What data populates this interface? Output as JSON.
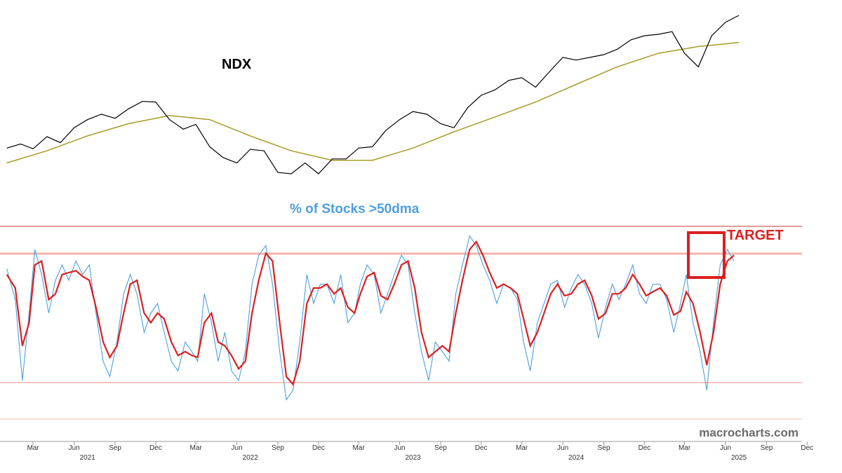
{
  "chart_data": [
    {
      "type": "line",
      "title": "NDX",
      "series": [
        {
          "name": "",
          "color": "#000000",
          "x": [
            "2021-01-01",
            "2021-02-01",
            "2021-03-01",
            "2021-04-01",
            "2021-05-01",
            "2021-06-01",
            "2021-07-01",
            "2021-08-01",
            "2021-09-01",
            "2021-10-01",
            "2021-11-01",
            "2021-12-01",
            "2022-01-01",
            "2022-02-01",
            "2022-03-01",
            "2022-04-01",
            "2022-05-01",
            "2022-06-01",
            "2022-07-01",
            "2022-08-01",
            "2022-09-01",
            "2022-10-01",
            "2022-11-01",
            "2022-12-01",
            "2023-01-01",
            "2023-02-01",
            "2023-03-01",
            "2023-04-01",
            "2023-05-01",
            "2023-06-01",
            "2023-07-01",
            "2023-08-01",
            "2023-09-01",
            "2023-10-01",
            "2023-11-01",
            "2023-12-01",
            "2024-01-01",
            "2024-02-01",
            "2024-03-01",
            "2024-04-01",
            "2024-05-01",
            "2024-06-01",
            "2024-07-01",
            "2024-08-01",
            "2024-09-01",
            "2024-10-01",
            "2024-11-01",
            "2024-12-01",
            "2025-01-01",
            "2025-02-01",
            "2025-03-01",
            "2025-04-01",
            "2025-05-01",
            "2025-06-01",
            "2025-07-01"
          ],
          "values": [
            12900,
            13200,
            12850,
            13750,
            13300,
            14400,
            15000,
            15400,
            15100,
            15800,
            16350,
            16300,
            15000,
            14300,
            14650,
            13000,
            12200,
            11800,
            12800,
            12700,
            11100,
            11000,
            11800,
            11000,
            12100,
            12100,
            12900,
            13000,
            14200,
            15000,
            15600,
            15400,
            14700,
            14400,
            15900,
            16800,
            17200,
            17900,
            18100,
            17400,
            18500,
            19600,
            19400,
            19600,
            19800,
            20200,
            20900,
            21200,
            21300,
            21500,
            19900,
            18900,
            21200,
            22200,
            22700
          ]
        },
        {
          "name": "",
          "color": "#a89a2a",
          "x": [
            "2021-01-01",
            "2021-04-01",
            "2021-07-01",
            "2021-10-01",
            "2022-01-01",
            "2022-04-01",
            "2022-07-01",
            "2022-10-01",
            "2023-01-01",
            "2023-04-01",
            "2023-07-01",
            "2023-10-01",
            "2024-01-01",
            "2024-04-01",
            "2024-07-01",
            "2024-10-01",
            "2025-01-01",
            "2025-04-01",
            "2025-07-01"
          ],
          "values": [
            11800,
            12700,
            13800,
            14700,
            15300,
            15000,
            13800,
            12700,
            12000,
            12000,
            12900,
            14100,
            15200,
            16300,
            17600,
            18900,
            19900,
            20400,
            20700
          ]
        }
      ],
      "xlabel": "",
      "ylabel": ""
    },
    {
      "type": "line",
      "title": "% of Stocks >50dma",
      "series": [
        {
          "name": "",
          "color": "#4d9fe0",
          "x": [
            "2021-01-01",
            "2021-01-20",
            "2021-02-05",
            "2021-02-20",
            "2021-03-05",
            "2021-03-20",
            "2021-04-05",
            "2021-04-20",
            "2021-05-05",
            "2021-05-20",
            "2021-06-05",
            "2021-06-20",
            "2021-07-05",
            "2021-07-20",
            "2021-08-05",
            "2021-08-20",
            "2021-09-05",
            "2021-09-20",
            "2021-10-05",
            "2021-10-20",
            "2021-11-05",
            "2021-11-20",
            "2021-12-05",
            "2021-12-20",
            "2022-01-05",
            "2022-01-20",
            "2022-02-05",
            "2022-02-20",
            "2022-03-05",
            "2022-03-20",
            "2022-04-05",
            "2022-04-20",
            "2022-05-05",
            "2022-05-20",
            "2022-06-05",
            "2022-06-20",
            "2022-07-05",
            "2022-07-20",
            "2022-08-05",
            "2022-08-20",
            "2022-09-05",
            "2022-09-20",
            "2022-10-05",
            "2022-10-20",
            "2022-11-05",
            "2022-11-20",
            "2022-12-05",
            "2022-12-20",
            "2023-01-05",
            "2023-01-20",
            "2023-02-05",
            "2023-02-20",
            "2023-03-05",
            "2023-03-20",
            "2023-04-05",
            "2023-04-20",
            "2023-05-05",
            "2023-05-20",
            "2023-06-05",
            "2023-06-20",
            "2023-07-05",
            "2023-07-20",
            "2023-08-05",
            "2023-08-20",
            "2023-09-05",
            "2023-09-20",
            "2023-10-05",
            "2023-10-20",
            "2023-11-05",
            "2023-11-20",
            "2023-12-05",
            "2023-12-20",
            "2024-01-05",
            "2024-01-20",
            "2024-02-05",
            "2024-02-20",
            "2024-03-05",
            "2024-03-20",
            "2024-04-05",
            "2024-04-20",
            "2024-05-05",
            "2024-05-20",
            "2024-06-05",
            "2024-06-20",
            "2024-07-05",
            "2024-07-20",
            "2024-08-05",
            "2024-08-20",
            "2024-09-05",
            "2024-09-20",
            "2024-10-05",
            "2024-10-20",
            "2024-11-05",
            "2024-11-20",
            "2024-12-05",
            "2024-12-20",
            "2025-01-05",
            "2025-01-20",
            "2025-02-05",
            "2025-02-20",
            "2025-03-05",
            "2025-03-20",
            "2025-04-05",
            "2025-04-20",
            "2025-05-05",
            "2025-05-20",
            "2025-06-05",
            "2025-06-20"
          ],
          "values": [
            78,
            62,
            20,
            55,
            88,
            75,
            55,
            72,
            80,
            72,
            82,
            75,
            80,
            55,
            30,
            22,
            40,
            65,
            75,
            65,
            45,
            55,
            60,
            45,
            30,
            25,
            40,
            35,
            30,
            65,
            50,
            30,
            45,
            25,
            20,
            35,
            70,
            85,
            90,
            70,
            35,
            10,
            15,
            40,
            75,
            60,
            70,
            70,
            60,
            75,
            50,
            55,
            70,
            80,
            75,
            55,
            65,
            75,
            85,
            80,
            55,
            35,
            20,
            40,
            35,
            30,
            65,
            80,
            95,
            90,
            80,
            72,
            60,
            70,
            68,
            62,
            40,
            25,
            50,
            60,
            70,
            72,
            58,
            68,
            75,
            70,
            60,
            42,
            58,
            70,
            62,
            70,
            80,
            65,
            60,
            70,
            70,
            62,
            45,
            60,
            75,
            50,
            35,
            15,
            50,
            80,
            88,
            82
          ]
        },
        {
          "name": "",
          "color": "#dd1f1f",
          "x": [
            "2021-01-01",
            "2021-01-20",
            "2021-02-05",
            "2021-02-20",
            "2021-03-05",
            "2021-03-20",
            "2021-04-05",
            "2021-04-20",
            "2021-05-05",
            "2021-05-20",
            "2021-06-05",
            "2021-06-20",
            "2021-07-05",
            "2021-07-20",
            "2021-08-05",
            "2021-08-20",
            "2021-09-05",
            "2021-09-20",
            "2021-10-05",
            "2021-10-20",
            "2021-11-05",
            "2021-11-20",
            "2021-12-05",
            "2021-12-20",
            "2022-01-05",
            "2022-01-20",
            "2022-02-05",
            "2022-02-20",
            "2022-03-05",
            "2022-03-20",
            "2022-04-05",
            "2022-04-20",
            "2022-05-05",
            "2022-05-20",
            "2022-06-05",
            "2022-06-20",
            "2022-07-05",
            "2022-07-20",
            "2022-08-05",
            "2022-08-20",
            "2022-09-05",
            "2022-09-20",
            "2022-10-05",
            "2022-10-20",
            "2022-11-05",
            "2022-11-20",
            "2022-12-05",
            "2022-12-20",
            "2023-01-05",
            "2023-01-20",
            "2023-02-05",
            "2023-02-20",
            "2023-03-05",
            "2023-03-20",
            "2023-04-05",
            "2023-04-20",
            "2023-05-05",
            "2023-05-20",
            "2023-06-05",
            "2023-06-20",
            "2023-07-05",
            "2023-07-20",
            "2023-08-05",
            "2023-08-20",
            "2023-09-05",
            "2023-09-20",
            "2023-10-05",
            "2023-10-20",
            "2023-11-05",
            "2023-11-20",
            "2023-12-05",
            "2023-12-20",
            "2024-01-05",
            "2024-01-20",
            "2024-02-05",
            "2024-02-20",
            "2024-03-05",
            "2024-03-20",
            "2024-04-05",
            "2024-04-20",
            "2024-05-05",
            "2024-05-20",
            "2024-06-05",
            "2024-06-20",
            "2024-07-05",
            "2024-07-20",
            "2024-08-05",
            "2024-08-20",
            "2024-09-05",
            "2024-09-20",
            "2024-10-05",
            "2024-10-20",
            "2024-11-05",
            "2024-11-20",
            "2024-12-05",
            "2024-12-20",
            "2025-01-05",
            "2025-01-20",
            "2025-02-05",
            "2025-02-20",
            "2025-03-05",
            "2025-03-20",
            "2025-04-05",
            "2025-04-20",
            "2025-05-05",
            "2025-05-20",
            "2025-06-05",
            "2025-06-20"
          ],
          "values": [
            75,
            68,
            38,
            50,
            80,
            82,
            62,
            65,
            75,
            76,
            77,
            74,
            72,
            58,
            40,
            32,
            38,
            55,
            70,
            72,
            55,
            50,
            55,
            52,
            40,
            33,
            35,
            33,
            32,
            50,
            55,
            40,
            38,
            33,
            26,
            30,
            55,
            72,
            86,
            82,
            50,
            22,
            18,
            30,
            60,
            68,
            68,
            70,
            65,
            68,
            58,
            55,
            65,
            74,
            76,
            64,
            62,
            70,
            80,
            82,
            68,
            45,
            32,
            35,
            38,
            35,
            55,
            72,
            88,
            92,
            85,
            76,
            68,
            70,
            68,
            65,
            52,
            38,
            45,
            55,
            65,
            70,
            64,
            65,
            70,
            72,
            64,
            52,
            55,
            65,
            65,
            68,
            75,
            70,
            64,
            66,
            68,
            64,
            54,
            56,
            66,
            60,
            45,
            28,
            45,
            70,
            82,
            85
          ]
        }
      ],
      "hlines": [
        100,
        80,
        20,
        0
      ],
      "ylim": [
        0,
        100
      ],
      "annotation": "TARGET",
      "xlabel": "",
      "ylabel": ""
    }
  ],
  "x_axis": {
    "month_ticks": [
      {
        "label": "Mar",
        "date": "2021-03-01"
      },
      {
        "label": "Jun",
        "date": "2021-06-01"
      },
      {
        "label": "Sep",
        "date": "2021-09-01"
      },
      {
        "label": "Dec",
        "date": "2021-12-01"
      },
      {
        "label": "Mar",
        "date": "2022-03-01"
      },
      {
        "label": "Jun",
        "date": "2022-06-01"
      },
      {
        "label": "Sep",
        "date": "2022-09-01"
      },
      {
        "label": "Dec",
        "date": "2022-12-01"
      },
      {
        "label": "Mar",
        "date": "2023-03-01"
      },
      {
        "label": "Jun",
        "date": "2023-06-01"
      },
      {
        "label": "Sep",
        "date": "2023-09-01"
      },
      {
        "label": "Dec",
        "date": "2023-12-01"
      },
      {
        "label": "Mar",
        "date": "2024-03-01"
      },
      {
        "label": "Jun",
        "date": "2024-06-01"
      },
      {
        "label": "Sep",
        "date": "2024-09-01"
      },
      {
        "label": "Dec",
        "date": "2024-12-01"
      },
      {
        "label": "Mar",
        "date": "2025-03-01"
      },
      {
        "label": "Jun",
        "date": "2025-06-01"
      },
      {
        "label": "Sep",
        "date": "2025-09-01"
      },
      {
        "label": "Dec",
        "date": "2025-12-01"
      }
    ],
    "year_ticks": [
      {
        "label": "2021",
        "date": "2021-07-01"
      },
      {
        "label": "2022",
        "date": "2022-07-01"
      },
      {
        "label": "2023",
        "date": "2023-07-01"
      },
      {
        "label": "2024",
        "date": "2024-07-01"
      },
      {
        "label": "2025",
        "date": "2025-07-01"
      }
    ]
  },
  "watermark": "macrocharts.com",
  "colors": {
    "ndx": "#000000",
    "ndx_ma": "#a89a2a",
    "breadth": "#4d9fe0",
    "breadth_ma": "#dd1f1f",
    "title_blue": "#4d9fe0",
    "target_red": "#dd1f1f",
    "band": "#f3b3aa"
  }
}
